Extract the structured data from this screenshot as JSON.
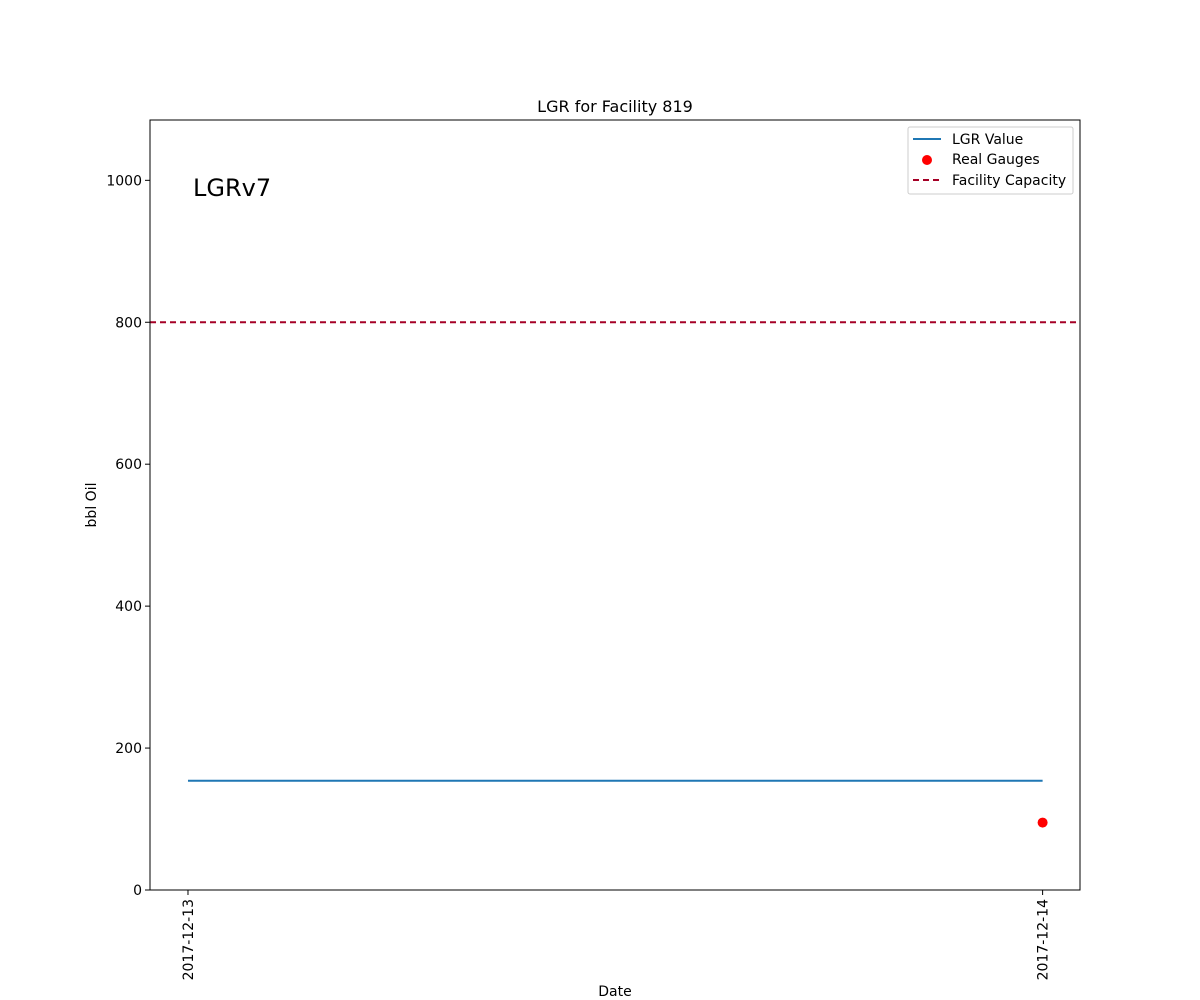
{
  "chart_data": {
    "type": "line",
    "title": "LGR for Facility 819",
    "xlabel": "Date",
    "ylabel": "bbl Oil",
    "annotation": "LGRv7",
    "x_ticks": [
      "2017-12-13",
      "2017-12-14"
    ],
    "xlim": [
      "2017-12-12T22:56",
      "2017-12-14T01:03"
    ],
    "ylim": [
      0,
      1085
    ],
    "y_ticks": [
      0,
      200,
      400,
      600,
      800,
      1000
    ],
    "grid": false,
    "legend_position": "top-right",
    "series": [
      {
        "name": "LGR Value",
        "kind": "line",
        "color": "#1f77b4",
        "points": [
          {
            "x": "2017-12-13",
            "y": 154
          },
          {
            "x": "2017-12-14",
            "y": 154
          }
        ]
      },
      {
        "name": "Real Gauges",
        "kind": "scatter",
        "color": "#ff0000",
        "points": [
          {
            "x": "2017-12-14",
            "y": 95
          }
        ]
      },
      {
        "name": "Facility Capacity",
        "kind": "hline",
        "color": "#a50026",
        "style": "dashed",
        "y": 800
      }
    ]
  }
}
